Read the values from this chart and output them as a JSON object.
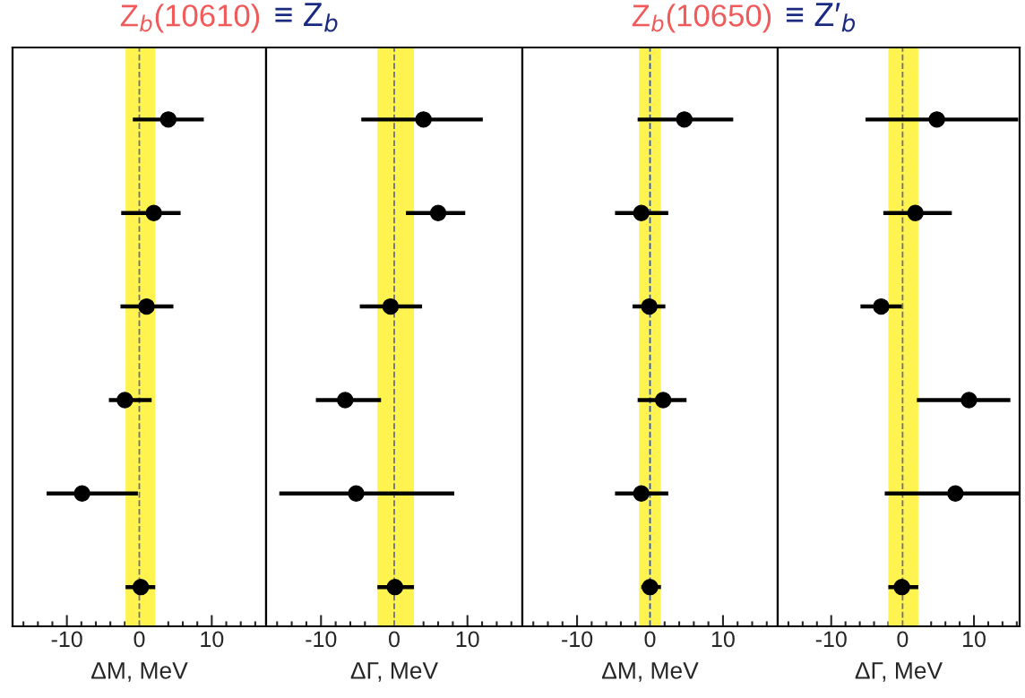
{
  "chart_data": [
    {
      "type": "scatter",
      "orientation": "horizontal",
      "title": "Z$_{b}$(10610)",
      "xlabel": "ΔM, MeV",
      "categories": [
        null,
        null,
        null,
        null,
        null,
        null
      ],
      "xlim": [
        -17.5,
        17.5
      ],
      "xticks": [
        -10,
        0,
        10
      ],
      "tick_labels": "x",
      "marker": "circle",
      "bands": [
        {
          "axis": "x",
          "from": -1.9,
          "to": 2.2,
          "color": "#fff44f"
        }
      ],
      "ref_lines": [
        {
          "axis": "x",
          "value": 0,
          "color": "#6e6e8e",
          "line_style": "dashed"
        }
      ],
      "series": [
        {
          "color": "#000000",
          "values": [
            4.0,
            2.0,
            1.0,
            -2.0,
            -7.9,
            0.2
          ],
          "errors": [
            [
              -0.9,
              8.9
            ],
            [
              -2.5,
              5.7
            ],
            [
              -2.6,
              4.7
            ],
            [
              -4.2,
              1.7
            ],
            [
              -12.8,
              -0.2
            ],
            [
              -1.9,
              2.2
            ]
          ]
        }
      ]
    },
    {
      "type": "scatter",
      "orientation": "horizontal",
      "title": "≡ Z$_{b}$",
      "xlabel": "ΔΓ, MeV",
      "categories": [
        null,
        null,
        null,
        null,
        null,
        null
      ],
      "xlim": [
        -17.5,
        17.5
      ],
      "xticks": [
        -10,
        0,
        10
      ],
      "tick_labels": "x",
      "marker": "circle",
      "bands": [
        {
          "axis": "x",
          "from": -2.3,
          "to": 2.7,
          "color": "#fff44f"
        }
      ],
      "ref_lines": [
        {
          "axis": "x",
          "value": 0,
          "color": "#6e6e8e",
          "line_style": "dashed"
        }
      ],
      "series": [
        {
          "color": "#000000",
          "values": [
            4.0,
            6.0,
            -0.5,
            -6.7,
            -5.2,
            0.1
          ],
          "errors": [
            [
              -4.5,
              12.1
            ],
            [
              1.6,
              9.7
            ],
            [
              -4.7,
              3.8
            ],
            [
              -10.7,
              -1.8
            ],
            [
              -15.7,
              8.2
            ],
            [
              -2.3,
              2.7
            ]
          ]
        }
      ]
    },
    {
      "type": "scatter",
      "orientation": "horizontal",
      "title": "Z$_{b}$(10650)",
      "xlabel": "ΔM, MeV",
      "categories": [
        null,
        null,
        null,
        null,
        null,
        null
      ],
      "xlim": [
        -17.5,
        17.5
      ],
      "xticks": [
        -10,
        0,
        10
      ],
      "tick_labels": "x",
      "marker": "circle",
      "bands": [
        {
          "axis": "x",
          "from": -1.5,
          "to": 1.5,
          "color": "#fff44f"
        }
      ],
      "ref_lines": [
        {
          "axis": "x",
          "value": 0,
          "color": "#1f4fff",
          "line_style": "dashed"
        }
      ],
      "series": [
        {
          "color": "#000000",
          "values": [
            4.7,
            -1.2,
            -0.1,
            1.8,
            -1.2,
            0.0
          ],
          "errors": [
            [
              -1.7,
              11.4
            ],
            [
              -4.8,
              2.5
            ],
            [
              -2.4,
              2.1
            ],
            [
              -1.7,
              5.0
            ],
            [
              -4.8,
              2.5
            ],
            [
              -1.2,
              1.5
            ]
          ]
        }
      ]
    },
    {
      "type": "scatter",
      "orientation": "horizontal",
      "title": "≡ Z′$_{b}$",
      "xlabel": "ΔΓ, MeV",
      "categories": [
        null,
        null,
        null,
        null,
        null,
        null
      ],
      "xlim": [
        -17.5,
        16.4
      ],
      "xticks": [
        -10,
        0,
        10
      ],
      "tick_labels": "x",
      "marker": "circle",
      "bands": [
        {
          "axis": "x",
          "from": -2.0,
          "to": 2.2,
          "color": "#fff44f"
        }
      ],
      "ref_lines": [
        {
          "axis": "x",
          "value": 0,
          "color": "#6e6e8e",
          "line_style": "dashed"
        }
      ],
      "series": [
        {
          "color": "#000000",
          "values": [
            4.8,
            1.8,
            -3.0,
            9.3,
            7.4,
            -0.1
          ],
          "errors": [
            [
              -5.2,
              16.2
            ],
            [
              -2.7,
              6.9
            ],
            [
              -5.9,
              -0.1
            ],
            [
              2.0,
              15.1
            ],
            [
              -2.5,
              16.4
            ],
            [
              -2.0,
              2.2
            ]
          ]
        }
      ]
    }
  ]
}
